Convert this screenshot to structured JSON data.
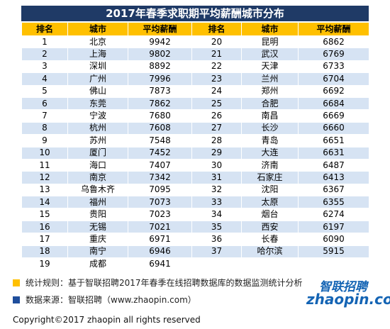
{
  "table": {
    "title": "2017年春季求职期平均薪酬城市分布",
    "header": [
      "排名",
      "城市",
      "平均薪酬",
      "排名",
      "城市",
      "平均薪酬"
    ],
    "rows": [
      [
        1,
        "北京",
        9942,
        20,
        "昆明",
        6862
      ],
      [
        2,
        "上海",
        9802,
        21,
        "武汉",
        6769
      ],
      [
        3,
        "深圳",
        8892,
        22,
        "天津",
        6733
      ],
      [
        4,
        "广州",
        7996,
        23,
        "兰州",
        6704
      ],
      [
        5,
        "佛山",
        7873,
        24,
        "郑州",
        6692
      ],
      [
        6,
        "东莞",
        7862,
        25,
        "合肥",
        6684
      ],
      [
        7,
        "宁波",
        7680,
        26,
        "南昌",
        6669
      ],
      [
        8,
        "杭州",
        7608,
        27,
        "长沙",
        6660
      ],
      [
        9,
        "苏州",
        7548,
        28,
        "青岛",
        6651
      ],
      [
        10,
        "厦门",
        7452,
        29,
        "大连",
        6631
      ],
      [
        11,
        "海口",
        7407,
        30,
        "济南",
        6487
      ],
      [
        12,
        "南京",
        7342,
        31,
        "石家庄",
        6413
      ],
      [
        13,
        "乌鲁木齐",
        7095,
        32,
        "沈阳",
        6367
      ],
      [
        14,
        "福州",
        7073,
        33,
        "太原",
        6355
      ],
      [
        15,
        "贵阳",
        7023,
        34,
        "烟台",
        6274
      ],
      [
        16,
        "无锡",
        7021,
        35,
        "西安",
        6197
      ],
      [
        17,
        "重庆",
        6971,
        36,
        "长春",
        6090
      ],
      [
        18,
        "南宁",
        6946,
        37,
        "哈尔滨",
        5915
      ],
      [
        19,
        "成都",
        6941
      ]
    ]
  },
  "notes": [
    "统计规则：基于智联招聘2017年春季在线招聘数据库的数据监测统计分析",
    "数据来源：智联招聘（www.zhaopin.com）"
  ],
  "logo": {
    "name": "智联招聘",
    "site": "zhaopin.com"
  },
  "copyright": "Copyright©2017 zhaopin all rights reserved"
}
